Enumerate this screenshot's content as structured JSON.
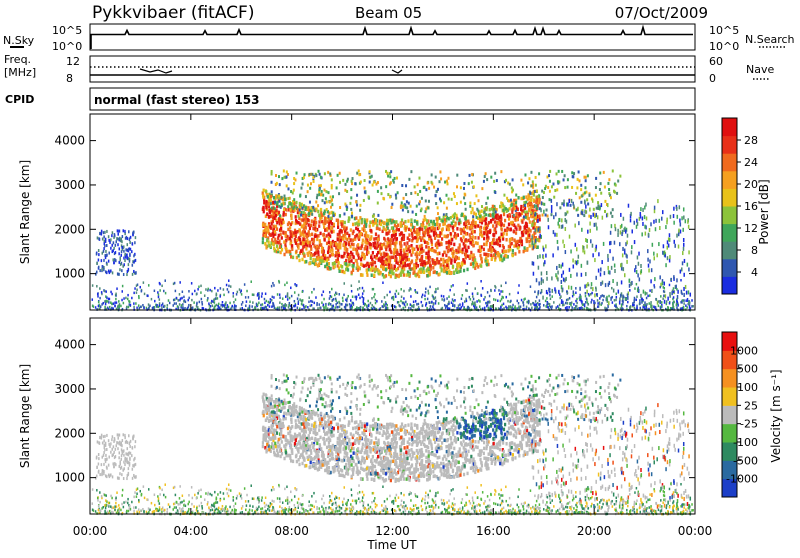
{
  "header": {
    "station": "Pykkvibaer (fitACF)",
    "beam": "Beam 05",
    "date": "07/Oct/2009"
  },
  "nsky_panel": {
    "left_label": "N.Sky",
    "left_ticks": [
      "10^5",
      "10^0"
    ],
    "right_label": "N.Search",
    "right_ticks": [
      "10^5",
      "10^0"
    ]
  },
  "freq_panel": {
    "left_label_top": "Freq.",
    "left_label_unit": "[MHz]",
    "left_ticks": [
      "12",
      "8"
    ],
    "right_label": "Nave",
    "right_ticks": [
      "60",
      "0"
    ]
  },
  "cpid": {
    "label": "CPID",
    "text": "normal (fast stereo) 153"
  },
  "chart_data": [
    {
      "type": "heatmap",
      "name": "power",
      "ylabel": "Slant Range [km]",
      "xlabel": "",
      "ylim": [
        180,
        4600
      ],
      "xlim": [
        0,
        24
      ],
      "y_ticks": [
        1000,
        2000,
        3000,
        4000
      ],
      "colorbar": {
        "label": "Power [dB]",
        "ticks": [
          "4",
          "8",
          "12",
          "16",
          "20",
          "24",
          "28"
        ],
        "colors": [
          "#1a2de0",
          "#2f57b0",
          "#4f8a78",
          "#3fa65a",
          "#8cc33a",
          "#e8c21a",
          "#f5a020",
          "#f06a1e",
          "#e83018",
          "#e01010"
        ]
      },
      "echo_regions": [
        {
          "t": [
            6.8,
            17.5
          ],
          "r": [
            900,
            2400
          ],
          "level": "high"
        },
        {
          "t": [
            7.0,
            21.0
          ],
          "r": [
            2300,
            3300
          ],
          "level": "mixed"
        },
        {
          "t": [
            0,
            24
          ],
          "r": [
            180,
            650
          ],
          "level": "ground"
        }
      ]
    },
    {
      "type": "heatmap",
      "name": "velocity",
      "ylabel": "Slant Range [km]",
      "xlabel": "Time UT",
      "ylim": [
        180,
        4600
      ],
      "xlim": [
        0,
        24
      ],
      "x_ticks": [
        "00:00",
        "04:00",
        "08:00",
        "12:00",
        "16:00",
        "20:00",
        "00:00"
      ],
      "y_ticks": [
        1000,
        2000,
        3000,
        4000
      ],
      "colorbar": {
        "label": "Velocity [m s⁻¹]",
        "ticks": [
          "1000",
          "500",
          "100",
          "25",
          "-25",
          "-100",
          "-500",
          "-1000"
        ],
        "colors": [
          "#1c3fc8",
          "#2a6aa0",
          "#2e8a60",
          "#55b840",
          "#bbbbbb",
          "#f0c020",
          "#f59020",
          "#f05018",
          "#e81010"
        ]
      }
    }
  ]
}
